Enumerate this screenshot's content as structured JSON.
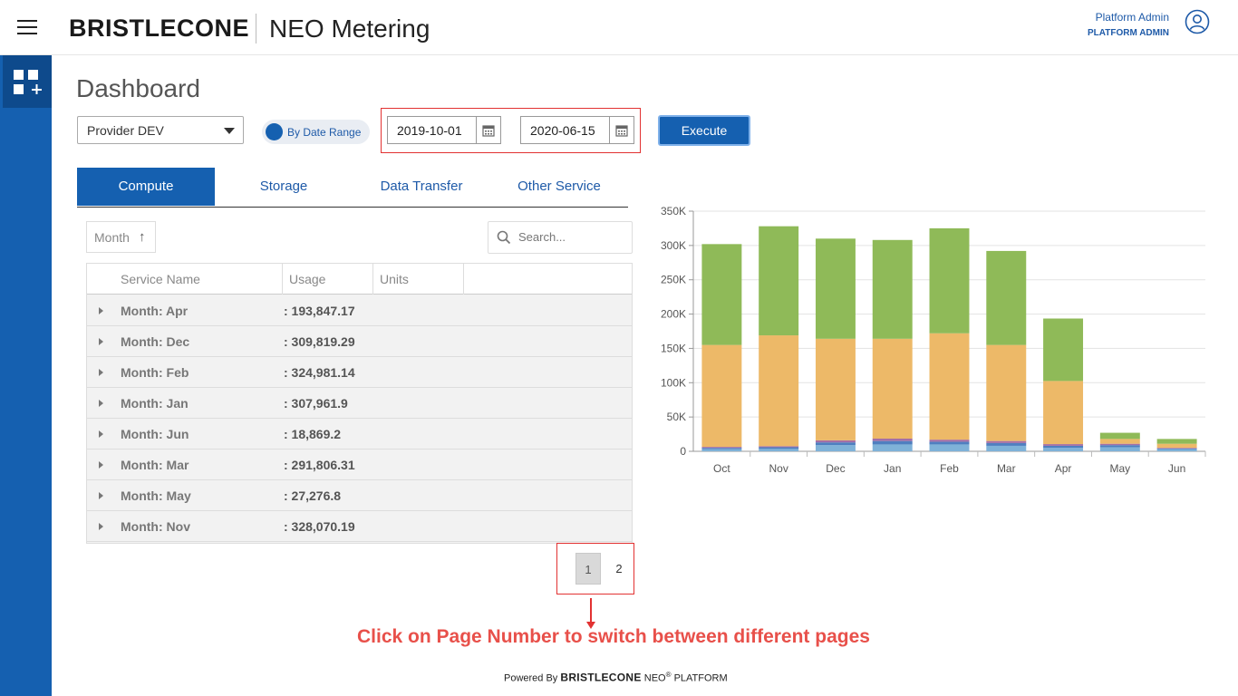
{
  "header": {
    "brand": "BRISTLECONE",
    "app_title": "NEO Metering",
    "user_name": "Platform Admin",
    "user_role": "PLATFORM ADMIN"
  },
  "page": {
    "title": "Dashboard"
  },
  "filters": {
    "provider": "Provider DEV",
    "toggle_label": "By Date Range",
    "start_date": "2019-10-01",
    "end_date": "2020-06-15",
    "execute_label": "Execute"
  },
  "tabs": [
    {
      "label": "Compute",
      "active": true
    },
    {
      "label": "Storage",
      "active": false
    },
    {
      "label": "Data Transfer",
      "active": false
    },
    {
      "label": "Other Service",
      "active": false
    }
  ],
  "grid": {
    "sort_label": "Month",
    "search_placeholder": "Search...",
    "columns": [
      "Service Name",
      "Usage",
      "Units"
    ],
    "rows": [
      {
        "label": "Month: Apr",
        "value": ": 193,847.17"
      },
      {
        "label": "Month: Dec",
        "value": ": 309,819.29"
      },
      {
        "label": "Month: Feb",
        "value": ": 324,981.14"
      },
      {
        "label": "Month: Jan",
        "value": ": 307,961.9"
      },
      {
        "label": "Month: Jun",
        "value": ": 18,869.2"
      },
      {
        "label": "Month: Mar",
        "value": ": 291,806.31"
      },
      {
        "label": "Month: May",
        "value": ": 27,276.8"
      },
      {
        "label": "Month: Nov",
        "value": ": 328,070.19"
      }
    ]
  },
  "pager": {
    "pages": [
      "1",
      "2"
    ],
    "current": "1"
  },
  "annotation": {
    "text": "Click on Page Number to switch between different pages"
  },
  "footer": {
    "powered_by": "Powered By",
    "brand": "BRISTLECONE",
    "product": "NEO",
    "reg": "®",
    "platform": "PLATFORM"
  },
  "colors": {
    "primary": "#1560b0",
    "annotation": "#e8504a"
  },
  "chart_data": {
    "type": "bar",
    "stacked": true,
    "categories": [
      "Oct",
      "Nov",
      "Dec",
      "Jan",
      "Feb",
      "Mar",
      "Apr",
      "May",
      "Jun"
    ],
    "yticks": [
      "0",
      "50K",
      "100K",
      "150K",
      "200K",
      "250K",
      "300K",
      "350K"
    ],
    "ylim": [
      0,
      350000
    ],
    "series": [
      {
        "color": "#7fb2d8",
        "values": [
          3000,
          3500,
          9000,
          10000,
          10000,
          8000,
          5000,
          6000,
          3000
        ]
      },
      {
        "color": "#4f7fc0",
        "values": [
          2000,
          2500,
          4000,
          5000,
          4000,
          4000,
          3000,
          3000,
          1000
        ]
      },
      {
        "color": "#a46fa6",
        "values": [
          1500,
          1500,
          3000,
          3500,
          3000,
          3000,
          2500,
          2000,
          1000
        ]
      },
      {
        "color": "#edb968",
        "values": [
          148500,
          161500,
          148000,
          145500,
          155000,
          140000,
          92000,
          7000,
          6000
        ]
      },
      {
        "color": "#8fba58",
        "values": [
          147000,
          159000,
          146000,
          144000,
          153000,
          137000,
          91000,
          9000,
          7000
        ]
      }
    ]
  }
}
